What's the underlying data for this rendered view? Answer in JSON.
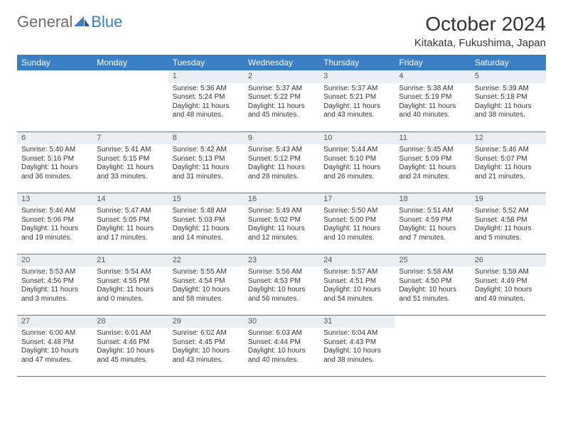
{
  "brand": {
    "general": "General",
    "blue": "Blue"
  },
  "title": "October 2024",
  "location": "Kitakata, Fukushima, Japan",
  "colors": {
    "header_bg": "#3a7fc4",
    "header_text": "#ffffff",
    "daynum_bg": "#e9eef2",
    "text": "#333333",
    "rule": "#3a7fc4",
    "page_bg": "#ffffff",
    "logo_gray": "#6b6b6b",
    "logo_blue": "#3a7fc4"
  },
  "weekdays": [
    "Sunday",
    "Monday",
    "Tuesday",
    "Wednesday",
    "Thursday",
    "Friday",
    "Saturday"
  ],
  "weeks": [
    [
      null,
      null,
      {
        "n": "1",
        "sr": "Sunrise: 5:36 AM",
        "ss": "Sunset: 5:24 PM",
        "d1": "Daylight: 11 hours",
        "d2": "and 48 minutes."
      },
      {
        "n": "2",
        "sr": "Sunrise: 5:37 AM",
        "ss": "Sunset: 5:22 PM",
        "d1": "Daylight: 11 hours",
        "d2": "and 45 minutes."
      },
      {
        "n": "3",
        "sr": "Sunrise: 5:37 AM",
        "ss": "Sunset: 5:21 PM",
        "d1": "Daylight: 11 hours",
        "d2": "and 43 minutes."
      },
      {
        "n": "4",
        "sr": "Sunrise: 5:38 AM",
        "ss": "Sunset: 5:19 PM",
        "d1": "Daylight: 11 hours",
        "d2": "and 40 minutes."
      },
      {
        "n": "5",
        "sr": "Sunrise: 5:39 AM",
        "ss": "Sunset: 5:18 PM",
        "d1": "Daylight: 11 hours",
        "d2": "and 38 minutes."
      }
    ],
    [
      {
        "n": "6",
        "sr": "Sunrise: 5:40 AM",
        "ss": "Sunset: 5:16 PM",
        "d1": "Daylight: 11 hours",
        "d2": "and 36 minutes."
      },
      {
        "n": "7",
        "sr": "Sunrise: 5:41 AM",
        "ss": "Sunset: 5:15 PM",
        "d1": "Daylight: 11 hours",
        "d2": "and 33 minutes."
      },
      {
        "n": "8",
        "sr": "Sunrise: 5:42 AM",
        "ss": "Sunset: 5:13 PM",
        "d1": "Daylight: 11 hours",
        "d2": "and 31 minutes."
      },
      {
        "n": "9",
        "sr": "Sunrise: 5:43 AM",
        "ss": "Sunset: 5:12 PM",
        "d1": "Daylight: 11 hours",
        "d2": "and 28 minutes."
      },
      {
        "n": "10",
        "sr": "Sunrise: 5:44 AM",
        "ss": "Sunset: 5:10 PM",
        "d1": "Daylight: 11 hours",
        "d2": "and 26 minutes."
      },
      {
        "n": "11",
        "sr": "Sunrise: 5:45 AM",
        "ss": "Sunset: 5:09 PM",
        "d1": "Daylight: 11 hours",
        "d2": "and 24 minutes."
      },
      {
        "n": "12",
        "sr": "Sunrise: 5:46 AM",
        "ss": "Sunset: 5:07 PM",
        "d1": "Daylight: 11 hours",
        "d2": "and 21 minutes."
      }
    ],
    [
      {
        "n": "13",
        "sr": "Sunrise: 5:46 AM",
        "ss": "Sunset: 5:06 PM",
        "d1": "Daylight: 11 hours",
        "d2": "and 19 minutes."
      },
      {
        "n": "14",
        "sr": "Sunrise: 5:47 AM",
        "ss": "Sunset: 5:05 PM",
        "d1": "Daylight: 11 hours",
        "d2": "and 17 minutes."
      },
      {
        "n": "15",
        "sr": "Sunrise: 5:48 AM",
        "ss": "Sunset: 5:03 PM",
        "d1": "Daylight: 11 hours",
        "d2": "and 14 minutes."
      },
      {
        "n": "16",
        "sr": "Sunrise: 5:49 AM",
        "ss": "Sunset: 5:02 PM",
        "d1": "Daylight: 11 hours",
        "d2": "and 12 minutes."
      },
      {
        "n": "17",
        "sr": "Sunrise: 5:50 AM",
        "ss": "Sunset: 5:00 PM",
        "d1": "Daylight: 11 hours",
        "d2": "and 10 minutes."
      },
      {
        "n": "18",
        "sr": "Sunrise: 5:51 AM",
        "ss": "Sunset: 4:59 PM",
        "d1": "Daylight: 11 hours",
        "d2": "and 7 minutes."
      },
      {
        "n": "19",
        "sr": "Sunrise: 5:52 AM",
        "ss": "Sunset: 4:58 PM",
        "d1": "Daylight: 11 hours",
        "d2": "and 5 minutes."
      }
    ],
    [
      {
        "n": "20",
        "sr": "Sunrise: 5:53 AM",
        "ss": "Sunset: 4:56 PM",
        "d1": "Daylight: 11 hours",
        "d2": "and 3 minutes."
      },
      {
        "n": "21",
        "sr": "Sunrise: 5:54 AM",
        "ss": "Sunset: 4:55 PM",
        "d1": "Daylight: 11 hours",
        "d2": "and 0 minutes."
      },
      {
        "n": "22",
        "sr": "Sunrise: 5:55 AM",
        "ss": "Sunset: 4:54 PM",
        "d1": "Daylight: 10 hours",
        "d2": "and 58 minutes."
      },
      {
        "n": "23",
        "sr": "Sunrise: 5:56 AM",
        "ss": "Sunset: 4:53 PM",
        "d1": "Daylight: 10 hours",
        "d2": "and 56 minutes."
      },
      {
        "n": "24",
        "sr": "Sunrise: 5:57 AM",
        "ss": "Sunset: 4:51 PM",
        "d1": "Daylight: 10 hours",
        "d2": "and 54 minutes."
      },
      {
        "n": "25",
        "sr": "Sunrise: 5:58 AM",
        "ss": "Sunset: 4:50 PM",
        "d1": "Daylight: 10 hours",
        "d2": "and 51 minutes."
      },
      {
        "n": "26",
        "sr": "Sunrise: 5:59 AM",
        "ss": "Sunset: 4:49 PM",
        "d1": "Daylight: 10 hours",
        "d2": "and 49 minutes."
      }
    ],
    [
      {
        "n": "27",
        "sr": "Sunrise: 6:00 AM",
        "ss": "Sunset: 4:48 PM",
        "d1": "Daylight: 10 hours",
        "d2": "and 47 minutes."
      },
      {
        "n": "28",
        "sr": "Sunrise: 6:01 AM",
        "ss": "Sunset: 4:46 PM",
        "d1": "Daylight: 10 hours",
        "d2": "and 45 minutes."
      },
      {
        "n": "29",
        "sr": "Sunrise: 6:02 AM",
        "ss": "Sunset: 4:45 PM",
        "d1": "Daylight: 10 hours",
        "d2": "and 43 minutes."
      },
      {
        "n": "30",
        "sr": "Sunrise: 6:03 AM",
        "ss": "Sunset: 4:44 PM",
        "d1": "Daylight: 10 hours",
        "d2": "and 40 minutes."
      },
      {
        "n": "31",
        "sr": "Sunrise: 6:04 AM",
        "ss": "Sunset: 4:43 PM",
        "d1": "Daylight: 10 hours",
        "d2": "and 38 minutes."
      },
      null,
      null
    ]
  ]
}
